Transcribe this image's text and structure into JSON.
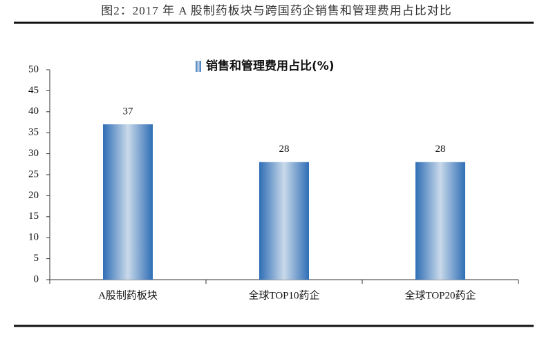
{
  "chart_data": {
    "type": "bar",
    "title": "图2：2017 年 A 股制药板块与跨国药企销售和管理费用占比对比",
    "categories": [
      "A股制药板块",
      "全球TOP10药企",
      "全球TOP20药企"
    ],
    "series": [
      {
        "name": "销售和管理费用占比(%)",
        "color": "#2f6eb5",
        "values": [
          37,
          28,
          28
        ]
      }
    ],
    "ylim": [
      0,
      50
    ],
    "yticks": [
      0,
      5,
      10,
      15,
      20,
      25,
      30,
      35,
      40,
      45,
      50
    ],
    "grid": false,
    "legend": "top"
  }
}
